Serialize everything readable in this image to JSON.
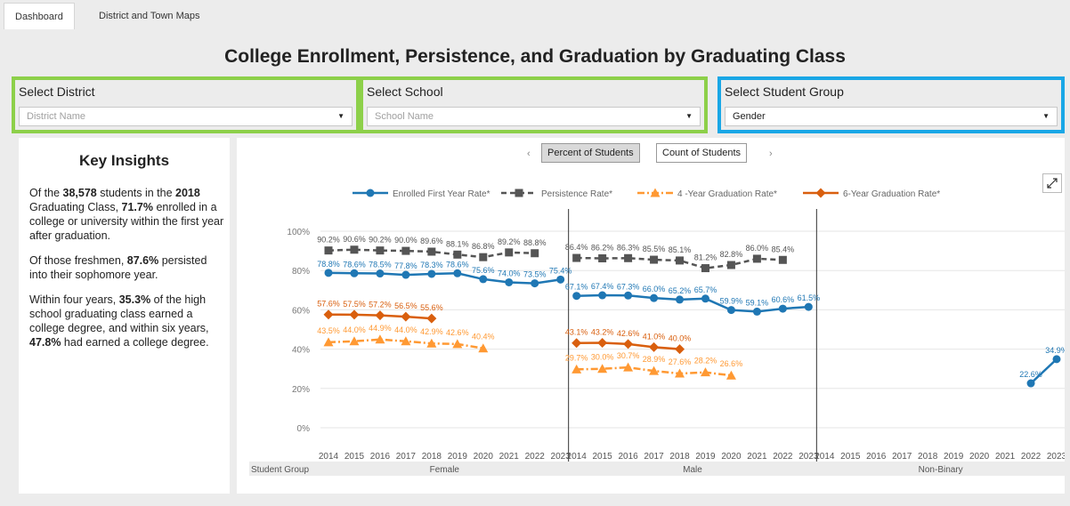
{
  "tabs": [
    "Dashboard",
    "District and Town Maps"
  ],
  "title": "College Enrollment, Persistence, and Graduation by Graduating Class",
  "filters": {
    "district": {
      "label": "Select District",
      "placeholder": "District Name"
    },
    "school": {
      "label": "Select School",
      "placeholder": "School Name"
    },
    "group": {
      "label": "Select Student Group",
      "value": "Gender"
    }
  },
  "insights": {
    "title": "Key Insights",
    "p1": [
      "Of  the ",
      "38,578",
      "  students in the ",
      "2018",
      " Graduating Class, ",
      "71.7%",
      " enrolled in a college or university within the first year after graduation."
    ],
    "p2": [
      "Of those freshmen,  ",
      "87.6%",
      " persisted into their sophomore year."
    ],
    "p3": [
      "Within four years, ",
      "35.3%",
      " of the high school graduating class earned a college degree, and within six years, ",
      "47.8%",
      " had earned a college degree."
    ]
  },
  "toggle": {
    "prev": "‹",
    "next": "›",
    "percent": "Percent of Students",
    "count": "Count of Students"
  },
  "colors": {
    "enrolled": "#1f77b4",
    "persistence": "#555555",
    "grad4": "#ff9933",
    "grad6": "#d95f0e",
    "filter_green": "#8dd04a",
    "filter_blue": "#1aa7e6"
  },
  "icons": {
    "expand": "expand-icon"
  },
  "chart_data": {
    "type": "line",
    "ylim": [
      0,
      100
    ],
    "yticks": [
      "0%",
      "20%",
      "40%",
      "60%",
      "80%",
      "100%"
    ],
    "xlabel_corner": "Student Group",
    "legend": [
      "Enrolled First Year Rate*",
      "Persistence Rate*",
      "4 -Year Graduation Rate*",
      "6-Year Graduation Rate*"
    ],
    "legend_position": "top",
    "years": [
      "2014",
      "2015",
      "2016",
      "2017",
      "2018",
      "2019",
      "2020",
      "2021",
      "2022",
      "2023"
    ],
    "panels": [
      {
        "name": "Female",
        "enrolled": [
          78.8,
          78.6,
          78.5,
          77.8,
          78.3,
          78.6,
          75.6,
          74.0,
          73.5,
          75.4
        ],
        "enrolled_labels": [
          "78.8%",
          "78.6%",
          "78.5%",
          "77.8%",
          "78.3%",
          "78.6%",
          "75.6%",
          "74.0%",
          "73.5%",
          "75.4%"
        ],
        "persistence": [
          90.2,
          90.6,
          90.2,
          90.0,
          89.6,
          88.1,
          86.8,
          89.2,
          88.8,
          null
        ],
        "persistence_labels": [
          "90.2%",
          "90.6%",
          "90.2%",
          "90.0%",
          "89.6%",
          "88.1%",
          "86.8%",
          "89.2%",
          "88.8%",
          null
        ],
        "grad6": [
          57.6,
          57.5,
          57.2,
          56.5,
          55.6,
          null,
          null,
          null,
          null,
          null
        ],
        "grad6_labels": [
          "57.6%",
          "57.5%",
          "57.2%",
          "56.5%",
          "55.6%",
          null,
          null,
          null,
          null,
          null
        ],
        "grad4": [
          43.5,
          44.0,
          44.9,
          44.0,
          42.9,
          42.6,
          40.4,
          null,
          null,
          null
        ],
        "grad4_labels": [
          "43.5%",
          "44.0%",
          "44.9%",
          "44.0%",
          "42.9%",
          "42.6%",
          "40.4%",
          null,
          null,
          null
        ]
      },
      {
        "name": "Male",
        "enrolled": [
          67.1,
          67.4,
          67.3,
          66.0,
          65.2,
          65.7,
          59.9,
          59.1,
          60.6,
          61.5
        ],
        "enrolled_labels": [
          "67.1%",
          "67.4%",
          "67.3%",
          "66.0%",
          "65.2%",
          "65.7%",
          "59.9%",
          "59.1%",
          "60.6%",
          "61.5%"
        ],
        "persistence": [
          86.4,
          86.2,
          86.3,
          85.5,
          85.1,
          81.2,
          82.8,
          86.0,
          85.4,
          null
        ],
        "persistence_labels": [
          "86.4%",
          "86.2%",
          "86.3%",
          "85.5%",
          "85.1%",
          "81.2%",
          "82.8%",
          "86.0%",
          "85.4%",
          null
        ],
        "grad6": [
          43.1,
          43.2,
          42.6,
          41.0,
          40.0,
          null,
          null,
          null,
          null,
          null
        ],
        "grad6_labels": [
          "43.1%",
          "43.2%",
          "42.6%",
          "41.0%",
          "40.0%",
          null,
          null,
          null,
          null,
          null
        ],
        "grad4": [
          29.7,
          30.0,
          30.7,
          28.9,
          27.6,
          28.2,
          26.6,
          null,
          null,
          null
        ],
        "grad4_labels": [
          "29.7%",
          "30.0%",
          "30.7%",
          "28.9%",
          "27.6%",
          "28.2%",
          "26.6%",
          null,
          null,
          null
        ]
      },
      {
        "name": "Non-Binary",
        "enrolled": [
          null,
          null,
          null,
          null,
          null,
          null,
          null,
          null,
          22.6,
          34.9
        ],
        "enrolled_labels": [
          null,
          null,
          null,
          null,
          null,
          null,
          null,
          null,
          "22.6%",
          "34.9%"
        ],
        "persistence": [
          null,
          null,
          null,
          null,
          null,
          null,
          null,
          null,
          null,
          null
        ],
        "persistence_labels": [
          null,
          null,
          null,
          null,
          null,
          null,
          null,
          null,
          null,
          null
        ],
        "grad6": [
          null,
          null,
          null,
          null,
          null,
          null,
          null,
          null,
          null,
          null
        ],
        "grad6_labels": [
          null,
          null,
          null,
          null,
          null,
          null,
          null,
          null,
          null,
          null
        ],
        "grad4": [
          null,
          null,
          null,
          null,
          null,
          null,
          null,
          null,
          null,
          null
        ],
        "grad4_labels": [
          null,
          null,
          null,
          null,
          null,
          null,
          null,
          null,
          null,
          null
        ]
      }
    ]
  }
}
